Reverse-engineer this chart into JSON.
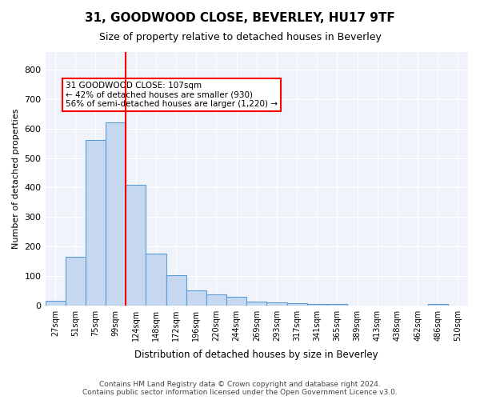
{
  "title": "31, GOODWOOD CLOSE, BEVERLEY, HU17 9TF",
  "subtitle": "Size of property relative to detached houses in Beverley",
  "xlabel": "Distribution of detached houses by size in Beverley",
  "ylabel": "Number of detached properties",
  "bar_color": "#c5d8f0",
  "bar_edge_color": "#5b9bd5",
  "redline_x": 3,
  "annotation_text": "31 GOODWOOD CLOSE: 107sqm\n← 42% of detached houses are smaller (930)\n56% of semi-detached houses are larger (1,220) →",
  "categories": [
    "27sqm",
    "51sqm",
    "75sqm",
    "99sqm",
    "124sqm",
    "148sqm",
    "172sqm",
    "196sqm",
    "220sqm",
    "244sqm",
    "269sqm",
    "293sqm",
    "317sqm",
    "341sqm",
    "365sqm",
    "389sqm",
    "413sqm",
    "438sqm",
    "462sqm",
    "486sqm",
    "510sqm"
  ],
  "values": [
    15,
    165,
    560,
    620,
    410,
    175,
    102,
    50,
    38,
    28,
    12,
    10,
    7,
    5,
    5,
    0,
    0,
    0,
    0,
    5,
    0
  ],
  "ylim": [
    0,
    860
  ],
  "yticks": [
    0,
    100,
    200,
    300,
    400,
    500,
    600,
    700,
    800
  ],
  "footer": "Contains HM Land Registry data © Crown copyright and database right 2024.\nContains public sector information licensed under the Open Government Licence v3.0.",
  "background_color": "#f0f4fa"
}
